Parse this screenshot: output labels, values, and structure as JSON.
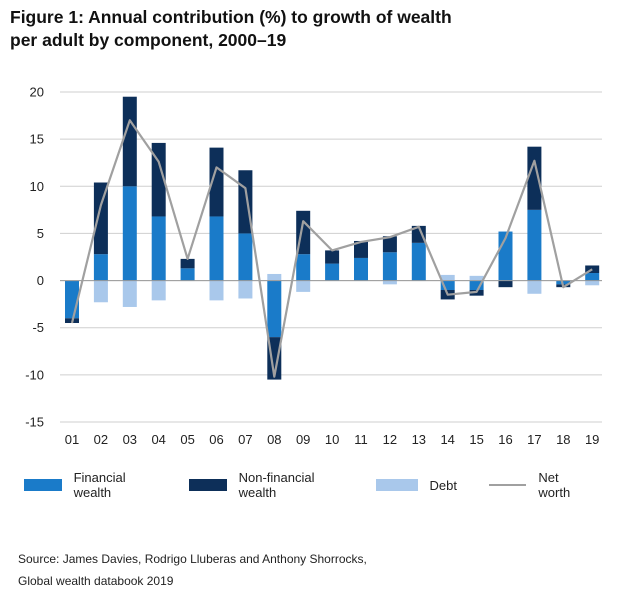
{
  "title_line1": "Figure 1: Annual contribution (%) to growth of wealth",
  "title_line2": "per adult by component, 2000–19",
  "source_line1": "Source: James Davies, Rodrigo Lluberas and Anthony Shorrocks,",
  "source_line2": "Global wealth databook 2019",
  "chart_data": {
    "type": "bar",
    "stacked": true,
    "categories": [
      "01",
      "02",
      "03",
      "04",
      "05",
      "06",
      "07",
      "08",
      "09",
      "10",
      "11",
      "12",
      "13",
      "14",
      "15",
      "16",
      "17",
      "18",
      "19"
    ],
    "series": [
      {
        "name": "Financial wealth",
        "type": "bar",
        "color": "#1a7bc9",
        "values": [
          -4.0,
          2.8,
          10.0,
          6.8,
          1.3,
          6.8,
          5.0,
          -6.0,
          2.8,
          1.8,
          2.4,
          3.0,
          4.0,
          -1.0,
          -1.0,
          5.2,
          7.5,
          -0.4,
          0.8
        ]
      },
      {
        "name": "Non-financial wealth",
        "type": "bar",
        "color": "#0d2f59",
        "values": [
          -0.5,
          7.6,
          9.5,
          7.8,
          1.0,
          7.3,
          6.7,
          -4.5,
          4.6,
          1.4,
          1.8,
          1.7,
          1.8,
          -1.0,
          -0.6,
          -0.7,
          6.7,
          -0.3,
          0.8
        ]
      },
      {
        "name": "Debt",
        "type": "bar",
        "color": "#a9c8eb",
        "values": [
          0.0,
          -2.3,
          -2.8,
          -2.1,
          0.0,
          -2.1,
          -1.9,
          0.7,
          -1.2,
          0.0,
          0.0,
          -0.4,
          0.0,
          0.6,
          0.5,
          0.0,
          -1.4,
          0.0,
          -0.5
        ]
      },
      {
        "name": "Net worth",
        "type": "line",
        "color": "#a0a0a0",
        "values": [
          -4.5,
          8.0,
          17.0,
          12.6,
          2.3,
          12.0,
          9.8,
          -10.2,
          6.3,
          3.2,
          4.1,
          4.6,
          5.7,
          -1.5,
          -1.2,
          4.5,
          12.7,
          -0.7,
          1.2
        ]
      }
    ],
    "ylim": [
      -15,
      20
    ],
    "yticks": [
      20,
      15,
      10,
      5,
      0,
      -5,
      -10,
      -15
    ],
    "grid": true,
    "legend_position": "bottom"
  }
}
